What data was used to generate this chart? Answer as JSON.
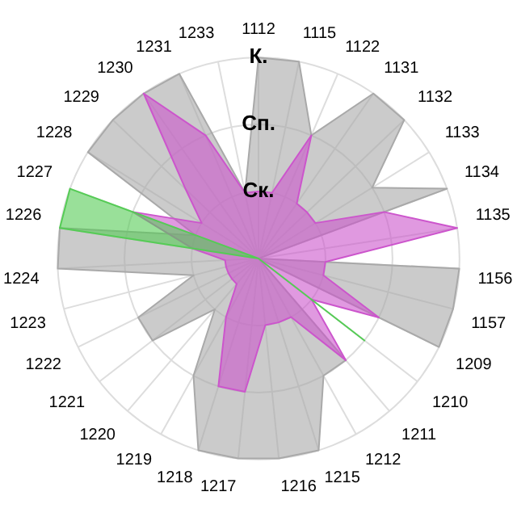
{
  "chart_data": {
    "type": "radar",
    "categories": [
      "1112",
      "1115",
      "1122",
      "1131",
      "1132",
      "1133",
      "1134",
      "1135",
      "1156",
      "1157",
      "1209",
      "1210",
      "1211",
      "1212",
      "1215",
      "1216",
      "1217",
      "1218",
      "1219",
      "1220",
      "1221",
      "1222",
      "1223",
      "1224",
      "1226",
      "1227",
      "1228",
      "1229",
      "1230",
      "1231",
      "1233"
    ],
    "ylim": [
      0,
      3
    ],
    "yticks": [
      {
        "value": 1,
        "label": "Ск."
      },
      {
        "value": 2,
        "label": "Сп."
      },
      {
        "value": 3,
        "label": "К."
      }
    ],
    "grid": true,
    "legend": false,
    "marker": "none",
    "series": [
      {
        "color": "#a9a9a9",
        "values": [
          3,
          3,
          2,
          3,
          3,
          2,
          3,
          0,
          3,
          3,
          3,
          0,
          2,
          2,
          3,
          3,
          3,
          3,
          2,
          1,
          2,
          2,
          1,
          3,
          3,
          1,
          3,
          3,
          3,
          3,
          1
        ]
      },
      {
        "color": "#cc55cc",
        "values": [
          1,
          1,
          2,
          1,
          1,
          1,
          2,
          3,
          1,
          1,
          2,
          1,
          2,
          1,
          1,
          1,
          2,
          2,
          1,
          0.5,
          0.5,
          0.5,
          0.5,
          0.5,
          1,
          2,
          1,
          1.5,
          3,
          2,
          1
        ]
      },
      {
        "color": "#55cc55",
        "values": [
          0,
          0,
          0,
          0,
          0,
          0,
          0,
          0,
          0,
          0,
          0,
          2,
          0,
          0,
          0,
          0,
          0,
          0,
          0,
          0,
          0,
          0,
          0,
          0,
          3,
          3,
          0,
          0,
          0,
          0,
          0
        ]
      }
    ]
  }
}
